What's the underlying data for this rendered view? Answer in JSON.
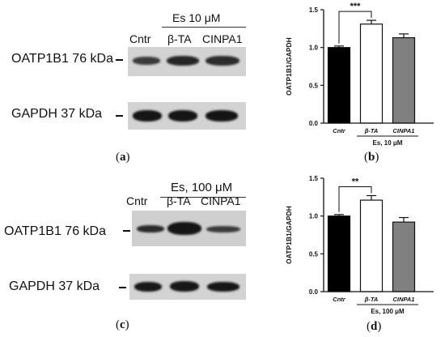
{
  "blots": [
    {
      "treatment": "Es 10 μM",
      "lanes": [
        "Cntr",
        "β-TA",
        "CINPA1"
      ],
      "protein_label": "OATP1B1 76 kDa",
      "loading_label": "GAPDH  37 kDa",
      "panel": "a"
    },
    {
      "treatment": "Es, 100 μM",
      "lanes": [
        "Cntr",
        "β-TA",
        "CINPA1"
      ],
      "protein_label": "OATP1B1 76 kDa",
      "loading_label": "GAPDH  37 kDa",
      "panel": "c"
    }
  ],
  "chart_data": [
    {
      "type": "bar",
      "panel": "b",
      "categories": [
        "Cntr",
        "β-TA",
        "CINPA1"
      ],
      "values": [
        1.0,
        1.31,
        1.13
      ],
      "errors": [
        0.02,
        0.05,
        0.05
      ],
      "bar_colors": [
        "#000000",
        "#ffffff",
        "#808080"
      ],
      "ylabel": "OATP1B1/GAPDH",
      "xlabel": "Es, 10 μM",
      "ylim": [
        0,
        1.5
      ],
      "yticks": [
        0.0,
        0.5,
        1.0,
        1.5
      ],
      "ytick_labels": [
        "0.0",
        "0.5",
        "1.0",
        "1.5"
      ],
      "significance": {
        "from": "Cntr",
        "to": "β-TA",
        "label": "***"
      }
    },
    {
      "type": "bar",
      "panel": "d",
      "categories": [
        "Cntr",
        "β-TA",
        "CINPA1"
      ],
      "values": [
        1.0,
        1.21,
        0.92
      ],
      "errors": [
        0.02,
        0.06,
        0.06
      ],
      "bar_colors": [
        "#000000",
        "#ffffff",
        "#808080"
      ],
      "ylabel": "OATP1B1/GAPDH",
      "xlabel": "Es, 100 μM",
      "ylim": [
        0,
        1.5
      ],
      "yticks": [
        0.0,
        0.5,
        1.0,
        1.5
      ],
      "ytick_labels": [
        "0.0",
        "0.5",
        "1.0",
        "1.5"
      ],
      "significance": {
        "from": "Cntr",
        "to": "β-TA",
        "label": "**"
      }
    }
  ]
}
